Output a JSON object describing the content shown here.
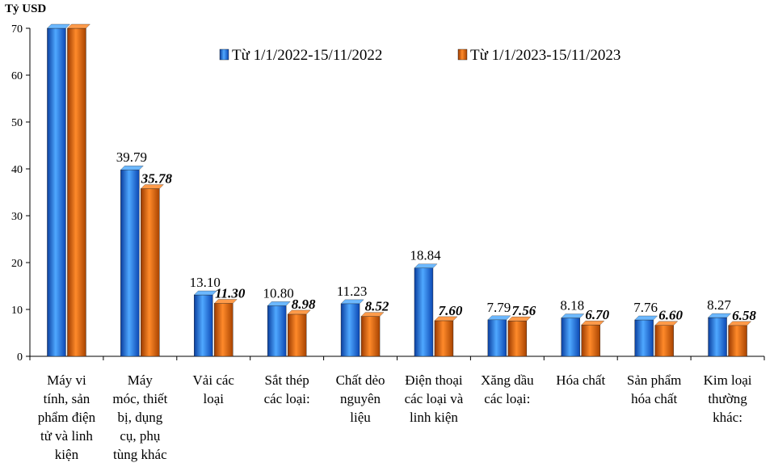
{
  "chart_data": {
    "type": "bar",
    "ylabel": "Tỷ USD",
    "ylim": [
      0,
      70
    ],
    "yticks": [
      0,
      10,
      20,
      30,
      40,
      50,
      60,
      70
    ],
    "categories": [
      [
        "Máy vi",
        "tính, sản",
        "phẩm điện",
        "tử và linh",
        "kiện"
      ],
      [
        "Máy",
        "móc, thiết",
        "bị, dụng",
        "cụ, phụ",
        "tùng khác"
      ],
      [
        "Vải các",
        "loại"
      ],
      [
        "Sắt thép",
        "các loại:"
      ],
      [
        "Chất dẻo",
        "nguyên",
        "liệu"
      ],
      [
        "Điện thoại",
        "các loại và",
        "linh kiện"
      ],
      [
        "Xăng dầu",
        "các loại:"
      ],
      [
        "Hóa chất"
      ],
      [
        "Sản phẩm",
        "hóa chất"
      ],
      [
        "Kim loại",
        "thường",
        "khác:"
      ]
    ],
    "series": [
      {
        "name": "Từ 1/1/2022-15/11/2022",
        "values": [
          70,
          39.79,
          13.1,
          10.8,
          11.23,
          18.84,
          7.79,
          8.18,
          7.76,
          8.27
        ],
        "labels": [
          "",
          "39.79",
          "13.10",
          "10.80",
          "11.23",
          "18.84",
          "7.79",
          "8.18",
          "7.76",
          "8.27"
        ],
        "color": "#2E86DE"
      },
      {
        "name": "Từ 1/1/2023-15/11/2023",
        "values": [
          70,
          35.78,
          11.3,
          8.98,
          8.52,
          7.6,
          7.56,
          6.7,
          6.6,
          6.58
        ],
        "labels": [
          "",
          "35.78",
          "11.30",
          "8.98",
          "8.52",
          "7.60",
          "7.56",
          "6.70",
          "6.60",
          "6.58"
        ],
        "color": "#E8650F"
      }
    ],
    "legend_position": "top-right",
    "grid": false
  }
}
